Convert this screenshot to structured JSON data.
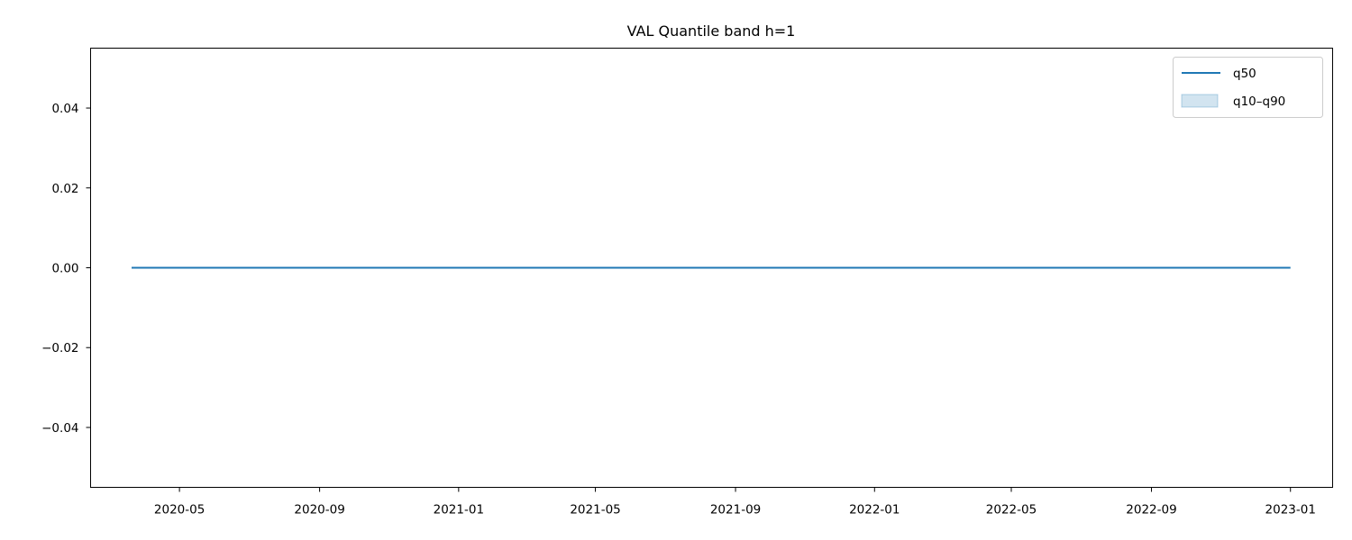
{
  "chart_data": {
    "type": "line",
    "title": "VAL Quantile band h=1",
    "xlabel": "",
    "ylabel": "",
    "x_start": "2020-03-20",
    "x_end": "2023-01-01",
    "xlim": [
      "2020-02-13",
      "2023-02-07"
    ],
    "ylim": [
      -0.055,
      0.055
    ],
    "x_ticks": [
      "2020-05",
      "2020-09",
      "2021-01",
      "2021-05",
      "2021-09",
      "2022-01",
      "2022-05",
      "2022-09",
      "2023-01"
    ],
    "y_ticks": [
      -0.04,
      -0.02,
      0.0,
      0.02,
      0.04
    ],
    "y_tick_labels": [
      "−0.04",
      "−0.02",
      "0.00",
      "0.02",
      "0.04"
    ],
    "series": [
      {
        "name": "q50",
        "type": "line",
        "color": "#1f77b4",
        "value": 0.0
      },
      {
        "name": "q10–q90",
        "type": "band",
        "color": "#1f77b4",
        "lower": 0.0,
        "upper": 0.0
      }
    ],
    "legend": {
      "position": "top-right",
      "entries": [
        "q50",
        "q10–q90"
      ]
    },
    "grid": false
  }
}
